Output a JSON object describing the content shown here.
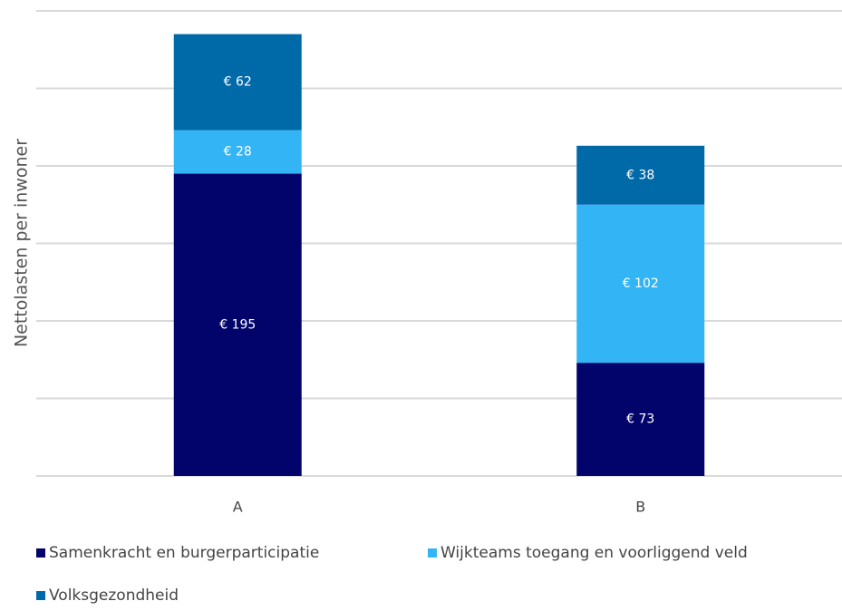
{
  "chart_data": {
    "type": "stacked_bar",
    "y_label": "Nettolasten per inwoner",
    "categories": [
      "A",
      "B"
    ],
    "series": [
      {
        "name": "Samenkracht en burgerparticipatie",
        "color": "#03046b",
        "values": [
          195,
          73
        ],
        "value_labels": [
          "€ 195",
          "€ 73"
        ]
      },
      {
        "name": "Wijkteams toegang en voorliggend veld",
        "color": "#33b5f5",
        "values": [
          28,
          102
        ],
        "value_labels": [
          "€ 28",
          "€ 102"
        ]
      },
      {
        "name": "Volksgezondheid",
        "color": "#006aa9",
        "values": [
          62,
          38
        ],
        "value_labels": [
          "€ 62",
          "€ 38"
        ]
      }
    ],
    "ylim": [
      0,
      300
    ],
    "yticks": [
      0,
      50,
      100,
      150,
      200,
      250,
      300
    ],
    "grid": true,
    "legend": "bottom"
  }
}
